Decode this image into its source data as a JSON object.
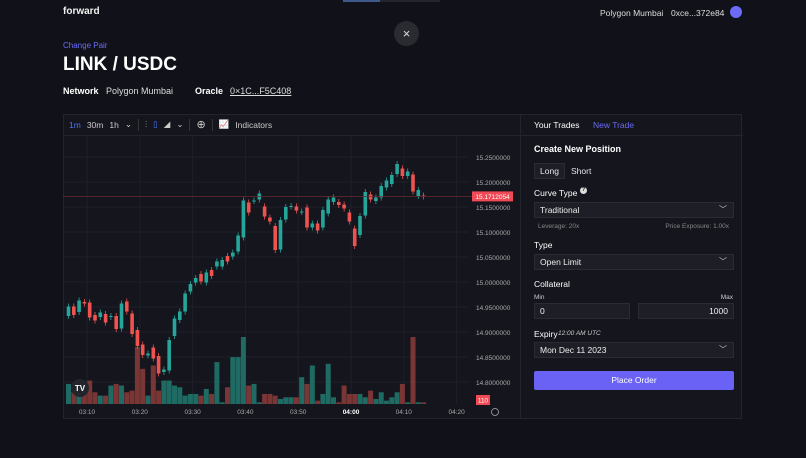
{
  "header": {
    "brand": "forward",
    "network": "Polygon Mumbai",
    "wallet": "0xce...372e84",
    "avatar_color": "#6b6bf6"
  },
  "close_icon": "×",
  "pair": {
    "change_label": "Change Pair",
    "title": "LINK / USDC",
    "network_label": "Network",
    "network_value": "Polygon Mumbai",
    "oracle_label": "Oracle",
    "oracle_value": "0×1C...F5C408"
  },
  "toolbar": {
    "intervals": [
      "1m",
      "30m",
      "1h"
    ],
    "active_interval": "1m",
    "indicators_label": "Indicators"
  },
  "chart_data": {
    "type": "candlestick",
    "ylim": [
      14.76,
      15.29
    ],
    "price_ticks": [
      "15.2500000",
      "15.2000000",
      "15.1500000",
      "15.1000000",
      "15.0500000",
      "15.0000000",
      "14.9500000",
      "14.9000000",
      "14.8500000",
      "14.8000000"
    ],
    "time_ticks": [
      "03:10",
      "03:20",
      "03:30",
      "03:40",
      "03:50",
      "04:00",
      "04:10",
      "04:20"
    ],
    "bold_tick": "04:00",
    "last_price": "15.1712054",
    "volume_label": "110",
    "up_color": "#26a69a",
    "down_color": "#ef5350",
    "candles": [
      [
        14.932,
        14.951
      ],
      [
        14.951,
        14.934
      ],
      [
        14.94,
        14.963
      ],
      [
        14.96,
        14.957
      ],
      [
        14.959,
        14.929
      ],
      [
        14.934,
        14.923
      ],
      [
        14.93,
        14.939
      ],
      [
        14.936,
        14.919
      ],
      [
        14.93,
        14.932
      ],
      [
        14.932,
        14.906
      ],
      [
        14.907,
        14.957
      ],
      [
        14.961,
        14.941
      ],
      [
        14.937,
        14.896
      ],
      [
        14.904,
        14.872
      ],
      [
        14.875,
        14.854
      ],
      [
        14.853,
        14.857
      ],
      [
        14.869,
        14.847
      ],
      [
        14.852,
        14.817
      ],
      [
        14.82,
        14.825
      ],
      [
        14.823,
        14.884
      ],
      [
        14.892,
        14.927
      ],
      [
        14.924,
        14.941
      ],
      [
        14.941,
        14.977
      ],
      [
        14.981,
        14.996
      ],
      [
        14.999,
        15.008
      ],
      [
        15.016,
        15.001
      ],
      [
        14.999,
        15.019
      ],
      [
        15.024,
        15.012
      ],
      [
        15.031,
        15.041
      ],
      [
        15.031,
        15.044
      ],
      [
        15.052,
        15.041
      ],
      [
        15.051,
        15.059
      ],
      [
        15.061,
        15.093
      ],
      [
        15.089,
        15.163
      ],
      [
        15.159,
        15.139
      ],
      [
        15.162,
        15.163
      ],
      [
        15.165,
        15.177
      ],
      [
        15.151,
        15.131
      ],
      [
        15.129,
        15.121
      ],
      [
        15.112,
        15.064
      ],
      [
        15.065,
        15.124
      ],
      [
        15.125,
        15.15
      ],
      [
        15.151,
        15.152
      ],
      [
        15.151,
        15.143
      ],
      [
        15.14,
        15.141
      ],
      [
        15.149,
        15.109
      ],
      [
        15.109,
        15.117
      ],
      [
        15.117,
        15.103
      ],
      [
        15.109,
        15.144
      ],
      [
        15.137,
        15.165
      ],
      [
        15.16,
        15.169
      ],
      [
        15.16,
        15.154
      ],
      [
        15.155,
        15.147
      ],
      [
        15.139,
        15.121
      ],
      [
        15.107,
        15.072
      ],
      [
        15.094,
        15.132
      ],
      [
        15.133,
        15.18
      ],
      [
        15.175,
        15.165
      ],
      [
        15.162,
        15.169
      ],
      [
        15.169,
        15.192
      ],
      [
        15.189,
        15.203
      ],
      [
        15.196,
        15.214
      ],
      [
        15.216,
        15.236
      ],
      [
        15.227,
        15.212
      ],
      [
        15.212,
        15.221
      ],
      [
        15.215,
        15.181
      ],
      [
        15.172,
        15.184
      ],
      [
        15.173,
        15.171
      ]
    ],
    "volumes": [
      60,
      35,
      55,
      40,
      70,
      35,
      25,
      25,
      55,
      60,
      55,
      35,
      40,
      170,
      105,
      25,
      115,
      40,
      70,
      70,
      55,
      50,
      25,
      30,
      30,
      25,
      45,
      30,
      125,
      5,
      50,
      140,
      140,
      200,
      55,
      60,
      5,
      30,
      30,
      25,
      15,
      20,
      20,
      20,
      80,
      60,
      115,
      10,
      30,
      120,
      20,
      5,
      55,
      30,
      30,
      30,
      20,
      40,
      15,
      35,
      10,
      20,
      35,
      60,
      5,
      200,
      5,
      5
    ]
  },
  "trade_panel": {
    "tabs": [
      "Your Trades",
      "New Trade"
    ],
    "active_tab": "New Trade",
    "title": "Create New Position",
    "sides": [
      "Long",
      "Short"
    ],
    "active_side": "Long",
    "curve_label": "Curve Type",
    "curve_value": "Traditional",
    "leverage": "Leverage: 20x",
    "exposure": "Price Exposure: 1.00x",
    "type_label": "Type",
    "type_value": "Open Limit",
    "collateral_label": "Collateral",
    "min_label": "Min",
    "max_label": "Max",
    "min_value": "0",
    "max_value": "1000",
    "expiry_label": "Expiry",
    "expiry_time": "12:00 AM UTC",
    "expiry_value": "Mon Dec 11 2023",
    "submit": "Place Order"
  }
}
